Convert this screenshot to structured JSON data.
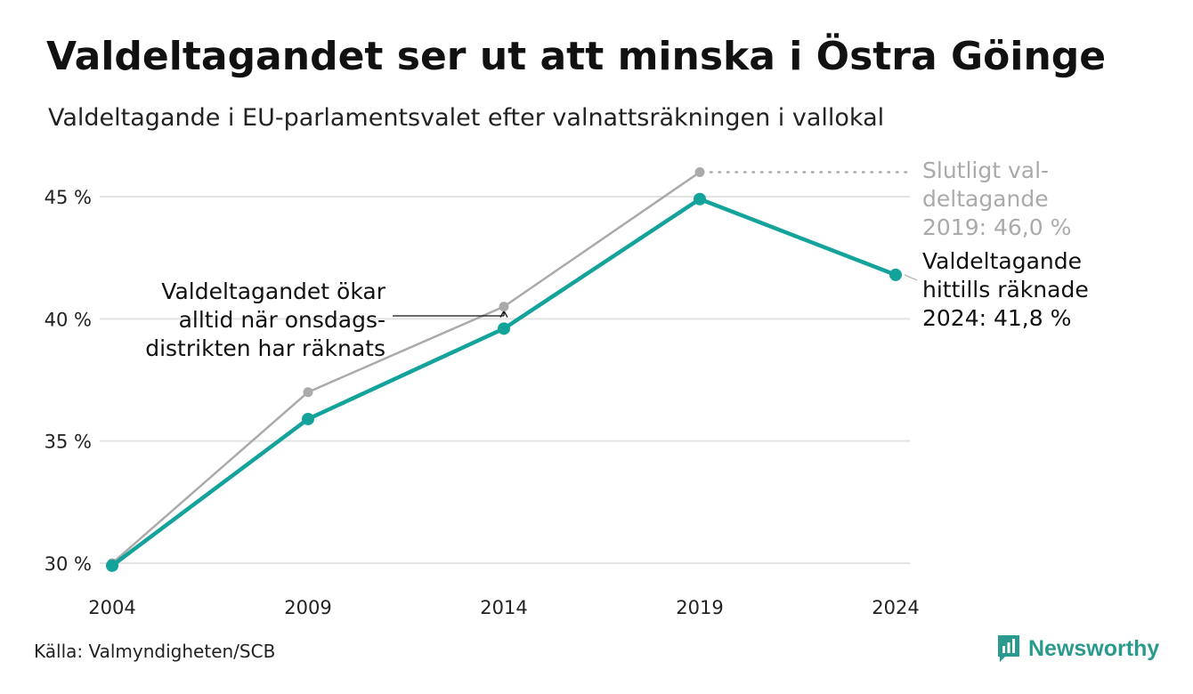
{
  "header": {
    "title": "Valdeltagandet ser ut att minska i Östra Göinge",
    "subtitle": "Valdeltagande i EU-parlamentsvalet efter valnattsräkningen i vallokal"
  },
  "chart_data": {
    "type": "line",
    "x": [
      "2004",
      "2009",
      "2014",
      "2019",
      "2024"
    ],
    "ylim": [
      30,
      46
    ],
    "yticks": [
      30,
      35,
      40,
      45
    ],
    "ytick_labels": [
      "30 %",
      "35 %",
      "40 %",
      "45 %"
    ],
    "grid": true,
    "series": [
      {
        "key": "final",
        "values": [
          30.0,
          37.0,
          40.5,
          46.0,
          null
        ],
        "color": "#aaaaaa"
      },
      {
        "key": "counted",
        "values": [
          29.9,
          35.9,
          39.6,
          44.9,
          41.8
        ],
        "color": "#13a39a"
      }
    ],
    "annotations": {
      "final_2019": [
        "Slutligt val-",
        "deltagande",
        "2019: 46,0 %"
      ],
      "counted_2024": [
        "Valdeltagande",
        "hittills räknade",
        "2024: 41,8 %"
      ],
      "increase_note": [
        "Valdeltagandet ökar",
        "alltid när onsdags-",
        "distrikten har räknats"
      ]
    }
  },
  "footer": {
    "source": "Källa: Valmyndigheten/SCB",
    "brand": "Newsworthy",
    "brand_icon": "newsworthy-logo-icon",
    "brand_color": "#2a9a8e"
  }
}
